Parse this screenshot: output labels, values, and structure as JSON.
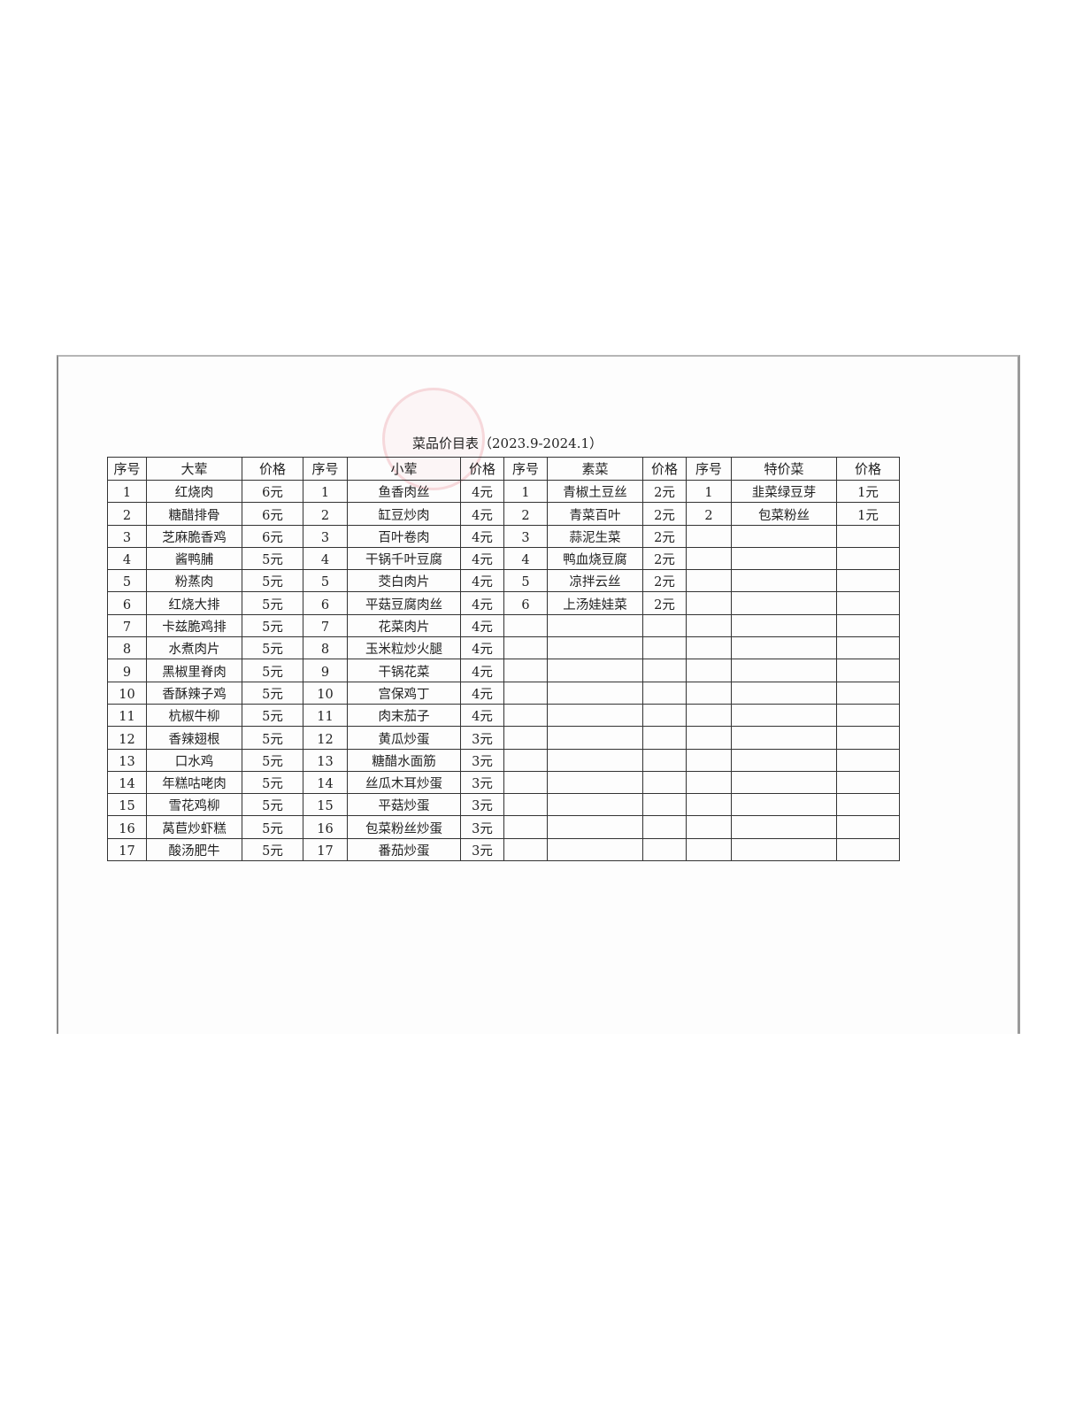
{
  "title": "菜品价目表（2023.9-2024.1）",
  "headers": [
    "序号",
    "大荤",
    "价格",
    "序号",
    "小荤",
    "价格",
    "序号",
    "素菜",
    "价格",
    "序号",
    "特价菜",
    "价格"
  ],
  "groups": [
    {
      "key": "big-meat",
      "items": [
        [
          "1",
          "红烧肉",
          "6元"
        ],
        [
          "2",
          "糖醋排骨",
          "6元"
        ],
        [
          "3",
          "芝麻脆香鸡",
          "6元"
        ],
        [
          "4",
          "酱鸭脯",
          "5元"
        ],
        [
          "5",
          "粉蒸肉",
          "5元"
        ],
        [
          "6",
          "红烧大排",
          "5元"
        ],
        [
          "7",
          "卡兹脆鸡排",
          "5元"
        ],
        [
          "8",
          "水煮肉片",
          "5元"
        ],
        [
          "9",
          "黑椒里脊肉",
          "5元"
        ],
        [
          "10",
          "香酥辣子鸡",
          "5元"
        ],
        [
          "11",
          "杭椒牛柳",
          "5元"
        ],
        [
          "12",
          "香辣翅根",
          "5元"
        ],
        [
          "13",
          "口水鸡",
          "5元"
        ],
        [
          "14",
          "年糕咕咾肉",
          "5元"
        ],
        [
          "15",
          "雪花鸡柳",
          "5元"
        ],
        [
          "16",
          "莴苣炒虾糕",
          "5元"
        ],
        [
          "17",
          "酸汤肥牛",
          "5元"
        ]
      ]
    },
    {
      "key": "small-meat",
      "items": [
        [
          "1",
          "鱼香肉丝",
          "4元"
        ],
        [
          "2",
          "缸豆炒肉",
          "4元"
        ],
        [
          "3",
          "百叶卷肉",
          "4元"
        ],
        [
          "4",
          "干锅千叶豆腐",
          "4元"
        ],
        [
          "5",
          "茭白肉片",
          "4元"
        ],
        [
          "6",
          "平菇豆腐肉丝",
          "4元"
        ],
        [
          "7",
          "花菜肉片",
          "4元"
        ],
        [
          "8",
          "玉米粒炒火腿",
          "4元"
        ],
        [
          "9",
          "干锅花菜",
          "4元"
        ],
        [
          "10",
          "宫保鸡丁",
          "4元"
        ],
        [
          "11",
          "肉末茄子",
          "4元"
        ],
        [
          "12",
          "黄瓜炒蛋",
          "3元"
        ],
        [
          "13",
          "糖醋水面筋",
          "3元"
        ],
        [
          "14",
          "丝瓜木耳炒蛋",
          "3元"
        ],
        [
          "15",
          "平菇炒蛋",
          "3元"
        ],
        [
          "16",
          "包菜粉丝炒蛋",
          "3元"
        ],
        [
          "17",
          "番茄炒蛋",
          "3元"
        ]
      ]
    },
    {
      "key": "vegetable",
      "items": [
        [
          "1",
          "青椒土豆丝",
          "2元"
        ],
        [
          "2",
          "青菜百叶",
          "2元"
        ],
        [
          "3",
          "蒜泥生菜",
          "2元"
        ],
        [
          "4",
          "鸭血烧豆腐",
          "2元"
        ],
        [
          "5",
          "凉拌云丝",
          "2元"
        ],
        [
          "6",
          "上汤娃娃菜",
          "2元"
        ]
      ]
    },
    {
      "key": "special",
      "items": [
        [
          "1",
          "韭菜绿豆芽",
          "1元"
        ],
        [
          "2",
          "包菜粉丝",
          "1元"
        ]
      ]
    }
  ],
  "row_count": 17
}
